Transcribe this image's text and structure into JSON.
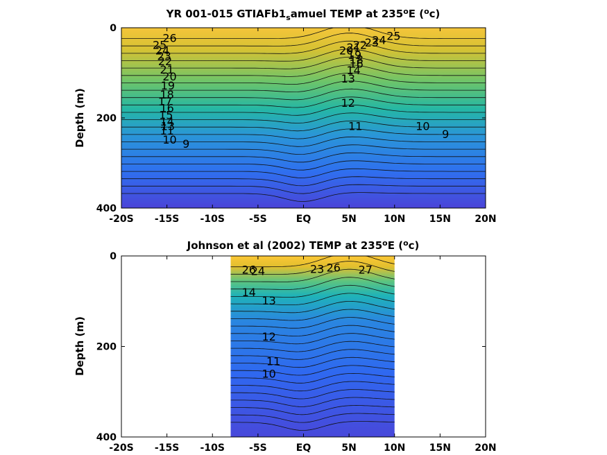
{
  "chart_data": [
    {
      "type": "contour",
      "title_prefix": "YR 001-015 GTIAFb1",
      "title_sub": "s",
      "title_mid": "amuel TEMP at 235",
      "title_sup1": "o",
      "title_mid2": "E (",
      "title_sup2": "o",
      "title_end": "c)",
      "ylabel": "Depth (m)",
      "xlim": [
        -20,
        20
      ],
      "ylim": [
        0,
        400
      ],
      "xticks": [
        -20,
        -15,
        -10,
        -5,
        0,
        5,
        10,
        15,
        20
      ],
      "xtick_labels": [
        "-20S",
        "-15S",
        "-10S",
        "-5S",
        "EQ",
        "5N",
        "10N",
        "15N",
        "20N"
      ],
      "yticks": [
        0,
        200,
        400
      ],
      "ytick_labels": [
        "0",
        "200",
        "400"
      ],
      "data_lon_range": [
        -20,
        20
      ],
      "colormap": "parula",
      "contour_labels": [
        {
          "text": "26",
          "x": -14.7,
          "depth": 22
        },
        {
          "text": "25",
          "x": -15.8,
          "depth": 38
        },
        {
          "text": "24",
          "x": -15.5,
          "depth": 50
        },
        {
          "text": "23",
          "x": -15.3,
          "depth": 62
        },
        {
          "text": "22",
          "x": -15.2,
          "depth": 74
        },
        {
          "text": "21",
          "x": -15.0,
          "depth": 92
        },
        {
          "text": "20",
          "x": -14.7,
          "depth": 108
        },
        {
          "text": "19",
          "x": -14.9,
          "depth": 128
        },
        {
          "text": "18",
          "x": -15.0,
          "depth": 148
        },
        {
          "text": "17",
          "x": -15.2,
          "depth": 163
        },
        {
          "text": "16",
          "x": -15.0,
          "depth": 178
        },
        {
          "text": "15",
          "x": -15.1,
          "depth": 193
        },
        {
          "text": "14",
          "x": -15.0,
          "depth": 208
        },
        {
          "text": "13",
          "x": -14.9,
          "depth": 218
        },
        {
          "text": "11",
          "x": -15.0,
          "depth": 228
        },
        {
          "text": "10",
          "x": -14.7,
          "depth": 248
        },
        {
          "text": "9",
          "x": -12.9,
          "depth": 257
        },
        {
          "text": "25",
          "x": 9.9,
          "depth": 18
        },
        {
          "text": "24",
          "x": 8.3,
          "depth": 27
        },
        {
          "text": "23",
          "x": 7.5,
          "depth": 32
        },
        {
          "text": "22",
          "x": 6.2,
          "depth": 38
        },
        {
          "text": "21",
          "x": 5.5,
          "depth": 43
        },
        {
          "text": "20",
          "x": 4.7,
          "depth": 50
        },
        {
          "text": "19",
          "x": 5.6,
          "depth": 60
        },
        {
          "text": "18",
          "x": 5.8,
          "depth": 70
        },
        {
          "text": "16",
          "x": 5.8,
          "depth": 79
        },
        {
          "text": "14",
          "x": 5.5,
          "depth": 94
        },
        {
          "text": "13",
          "x": 4.9,
          "depth": 112
        },
        {
          "text": "12",
          "x": 4.9,
          "depth": 166
        },
        {
          "text": "11",
          "x": 5.7,
          "depth": 218
        },
        {
          "text": "10",
          "x": 13.1,
          "depth": 218
        },
        {
          "text": "9",
          "x": 15.6,
          "depth": 235
        }
      ]
    },
    {
      "type": "contour",
      "title_prefix": "Johnson et al (2002) TEMP at 235",
      "title_sup1": "o",
      "title_mid2": "E (",
      "title_sup2": "o",
      "title_end": "c)",
      "ylabel": "Depth (m)",
      "xlim": [
        -20,
        20
      ],
      "ylim": [
        0,
        400
      ],
      "xticks": [
        -20,
        -15,
        -10,
        -5,
        0,
        5,
        10,
        15,
        20
      ],
      "xtick_labels": [
        "-20S",
        "-15S",
        "-10S",
        "-5S",
        "EQ",
        "5N",
        "10N",
        "15N",
        "20N"
      ],
      "yticks": [
        0,
        200,
        400
      ],
      "ytick_labels": [
        "0",
        "200",
        "400"
      ],
      "data_lon_range": [
        -8,
        10
      ],
      "colormap": "parula",
      "contour_labels": [
        {
          "text": "26",
          "x": -6.0,
          "depth": 30
        },
        {
          "text": "24",
          "x": -5.0,
          "depth": 33
        },
        {
          "text": "23",
          "x": 1.5,
          "depth": 28
        },
        {
          "text": "26",
          "x": 3.3,
          "depth": 25
        },
        {
          "text": "27",
          "x": 6.8,
          "depth": 30
        },
        {
          "text": "14",
          "x": -6.0,
          "depth": 80
        },
        {
          "text": "13",
          "x": -3.8,
          "depth": 98
        },
        {
          "text": "12",
          "x": -3.8,
          "depth": 178
        },
        {
          "text": "11",
          "x": -3.3,
          "depth": 232
        },
        {
          "text": "10",
          "x": -3.8,
          "depth": 260
        }
      ]
    }
  ]
}
